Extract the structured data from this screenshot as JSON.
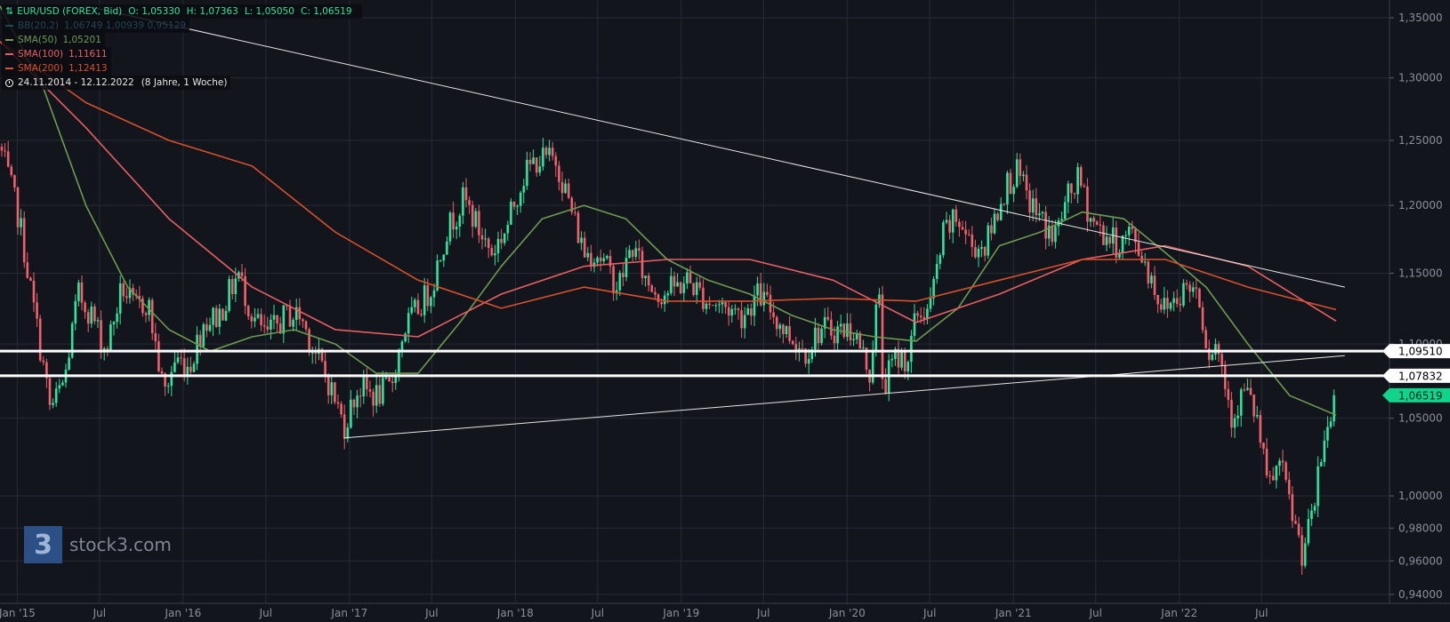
{
  "instrument": {
    "name": "EUR/USD (FOREX, Bid)",
    "open": "O: 1,05330",
    "high": "H: 1,07363",
    "low": "L: 1,05050",
    "close": "C: 1,06519",
    "range": "24.11.2014 - 12.12.2022",
    "range_note": "(8 Jahre, 1 Woche)"
  },
  "indicators": [
    {
      "label": "BB(20,2)",
      "values": "1,06749  1,00939  0,95129",
      "color": "#1f4654"
    },
    {
      "label": "SMA(50)",
      "values": "1,05201",
      "color": "#6e9a52"
    },
    {
      "label": "SMA(100)",
      "values": "1,11611",
      "color": "#e85f63"
    },
    {
      "label": "SMA(200)",
      "values": "1,12413",
      "color": "#d9502c"
    }
  ],
  "colors": {
    "up": "#2ee59d",
    "down": "#f0616d",
    "sma50": "#6e9a52",
    "sma100": "#e85f63",
    "sma200": "#d9502c",
    "last_price_tag": "#10d38c",
    "grid": "#272b33",
    "background": "#12151c"
  },
  "branding": {
    "logo_glyph": "3",
    "name": "stock3.com"
  },
  "chart_data": {
    "type": "candlestick",
    "title": "EUR/USD (FOREX, Bid)",
    "interval": "weekly",
    "xlabel": "",
    "ylabel": "",
    "ylim": [
      0.94,
      1.35
    ],
    "y_scale": "log",
    "y_ticks": [
      "0,94000",
      "0,96000",
      "0,98000",
      "1,00000",
      "1,05000",
      "1,10000",
      "1,15000",
      "1,20000",
      "1,25000",
      "1,30000",
      "1,35000"
    ],
    "x_ticks": [
      "Jan '15",
      "Jul",
      "Jan '16",
      "Jul",
      "Jan '17",
      "Jul",
      "Jan '18",
      "Jul",
      "Jan '19",
      "Jul",
      "Jan '20",
      "Jul",
      "Jan '21",
      "Jul",
      "Jan '22",
      "Jul"
    ],
    "grid": true,
    "last_price": "1,06519",
    "price_path": [
      [
        "2014-11-24",
        1.245
      ],
      [
        "2015-01-05",
        1.19
      ],
      [
        "2015-02-01",
        1.135
      ],
      [
        "2015-03-15",
        1.055
      ],
      [
        "2015-04-15",
        1.075
      ],
      [
        "2015-05-15",
        1.135
      ],
      [
        "2015-06-15",
        1.12
      ],
      [
        "2015-07-15",
        1.095
      ],
      [
        "2015-08-20",
        1.14
      ],
      [
        "2015-09-15",
        1.125
      ],
      [
        "2015-10-15",
        1.13
      ],
      [
        "2015-11-20",
        1.065
      ],
      [
        "2015-12-15",
        1.09
      ],
      [
        "2016-01-15",
        1.085
      ],
      [
        "2016-02-15",
        1.115
      ],
      [
        "2016-03-20",
        1.12
      ],
      [
        "2016-05-01",
        1.15
      ],
      [
        "2016-06-01",
        1.12
      ],
      [
        "2016-07-01",
        1.105
      ],
      [
        "2016-08-15",
        1.12
      ],
      [
        "2016-09-15",
        1.12
      ],
      [
        "2016-10-15",
        1.095
      ],
      [
        "2016-11-15",
        1.075
      ],
      [
        "2016-12-20",
        1.045
      ],
      [
        "2017-01-20",
        1.07
      ],
      [
        "2017-03-01",
        1.065
      ],
      [
        "2017-04-01",
        1.07
      ],
      [
        "2017-05-01",
        1.11
      ],
      [
        "2017-06-01",
        1.125
      ],
      [
        "2017-07-01",
        1.14
      ],
      [
        "2017-08-01",
        1.18
      ],
      [
        "2017-09-10",
        1.205
      ],
      [
        "2017-10-15",
        1.18
      ],
      [
        "2017-11-10",
        1.165
      ],
      [
        "2017-12-15",
        1.185
      ],
      [
        "2018-01-15",
        1.22
      ],
      [
        "2018-02-15",
        1.235
      ],
      [
        "2018-04-01",
        1.235
      ],
      [
        "2018-05-01",
        1.2
      ],
      [
        "2018-06-01",
        1.165
      ],
      [
        "2018-07-01",
        1.165
      ],
      [
        "2018-08-15",
        1.14
      ],
      [
        "2018-09-15",
        1.17
      ],
      [
        "2018-10-15",
        1.145
      ],
      [
        "2018-11-15",
        1.135
      ],
      [
        "2018-12-20",
        1.14
      ],
      [
        "2019-01-15",
        1.145
      ],
      [
        "2019-03-01",
        1.13
      ],
      [
        "2019-04-15",
        1.125
      ],
      [
        "2019-05-15",
        1.12
      ],
      [
        "2019-06-20",
        1.135
      ],
      [
        "2019-07-15",
        1.125
      ],
      [
        "2019-08-15",
        1.11
      ],
      [
        "2019-09-15",
        1.1
      ],
      [
        "2019-10-01",
        1.095
      ],
      [
        "2019-11-01",
        1.11
      ],
      [
        "2019-12-15",
        1.11
      ],
      [
        "2020-01-15",
        1.11
      ],
      [
        "2020-02-20",
        1.08
      ],
      [
        "2020-03-10",
        1.14
      ],
      [
        "2020-03-20",
        1.07
      ],
      [
        "2020-04-15",
        1.09
      ],
      [
        "2020-05-15",
        1.09
      ],
      [
        "2020-06-01",
        1.12
      ],
      [
        "2020-07-01",
        1.125
      ],
      [
        "2020-08-01",
        1.18
      ],
      [
        "2020-09-01",
        1.19
      ],
      [
        "2020-10-01",
        1.17
      ],
      [
        "2020-11-01",
        1.17
      ],
      [
        "2020-12-15",
        1.215
      ],
      [
        "2021-01-08",
        1.225
      ],
      [
        "2021-02-01",
        1.205
      ],
      [
        "2021-03-01",
        1.19
      ],
      [
        "2021-03-31",
        1.175
      ],
      [
        "2021-04-30",
        1.205
      ],
      [
        "2021-05-25",
        1.22
      ],
      [
        "2021-06-20",
        1.19
      ],
      [
        "2021-07-15",
        1.18
      ],
      [
        "2021-08-20",
        1.17
      ],
      [
        "2021-09-15",
        1.18
      ],
      [
        "2021-10-15",
        1.16
      ],
      [
        "2021-11-25",
        1.125
      ],
      [
        "2021-12-15",
        1.13
      ],
      [
        "2022-01-15",
        1.14
      ],
      [
        "2022-02-10",
        1.14
      ],
      [
        "2022-03-05",
        1.095
      ],
      [
        "2022-03-25",
        1.1
      ],
      [
        "2022-04-28",
        1.05
      ],
      [
        "2022-05-25",
        1.07
      ],
      [
        "2022-06-20",
        1.05
      ],
      [
        "2022-07-14",
        1.005
      ],
      [
        "2022-08-10",
        1.02
      ],
      [
        "2022-09-01",
        0.995
      ],
      [
        "2022-09-27",
        0.965
      ],
      [
        "2022-10-20",
        0.985
      ],
      [
        "2022-11-15",
        1.035
      ],
      [
        "2022-12-12",
        1.065
      ]
    ],
    "series": [
      {
        "name": "SMA(50)",
        "values": [
          [
            "2014-11-24",
            1.36
          ],
          [
            "2015-03-01",
            1.29
          ],
          [
            "2015-06-01",
            1.2
          ],
          [
            "2015-09-01",
            1.14
          ],
          [
            "2015-12-01",
            1.11
          ],
          [
            "2016-03-01",
            1.095
          ],
          [
            "2016-06-01",
            1.105
          ],
          [
            "2016-09-01",
            1.11
          ],
          [
            "2016-12-01",
            1.1
          ],
          [
            "2017-03-01",
            1.08
          ],
          [
            "2017-06-01",
            1.08
          ],
          [
            "2017-09-01",
            1.115
          ],
          [
            "2017-12-01",
            1.155
          ],
          [
            "2018-03-01",
            1.19
          ],
          [
            "2018-06-01",
            1.2
          ],
          [
            "2018-09-01",
            1.19
          ],
          [
            "2018-12-01",
            1.16
          ],
          [
            "2019-03-01",
            1.145
          ],
          [
            "2019-06-01",
            1.135
          ],
          [
            "2019-09-01",
            1.12
          ],
          [
            "2019-12-01",
            1.11
          ],
          [
            "2020-03-01",
            1.105
          ],
          [
            "2020-06-01",
            1.102
          ],
          [
            "2020-09-01",
            1.125
          ],
          [
            "2020-12-01",
            1.17
          ],
          [
            "2021-03-01",
            1.18
          ],
          [
            "2021-06-01",
            1.195
          ],
          [
            "2021-09-01",
            1.19
          ],
          [
            "2021-12-01",
            1.165
          ],
          [
            "2022-03-01",
            1.14
          ],
          [
            "2022-06-01",
            1.1
          ],
          [
            "2022-09-01",
            1.065
          ],
          [
            "2022-12-12",
            1.052
          ]
        ]
      },
      {
        "name": "SMA(100)",
        "values": [
          [
            "2014-11-24",
            1.33
          ],
          [
            "2015-06-01",
            1.26
          ],
          [
            "2015-12-01",
            1.19
          ],
          [
            "2016-06-01",
            1.14
          ],
          [
            "2016-12-01",
            1.11
          ],
          [
            "2017-06-01",
            1.105
          ],
          [
            "2017-12-01",
            1.135
          ],
          [
            "2018-06-01",
            1.155
          ],
          [
            "2018-12-01",
            1.16
          ],
          [
            "2019-06-01",
            1.16
          ],
          [
            "2019-12-01",
            1.145
          ],
          [
            "2020-06-01",
            1.115
          ],
          [
            "2020-12-01",
            1.135
          ],
          [
            "2021-06-01",
            1.16
          ],
          [
            "2021-12-01",
            1.17
          ],
          [
            "2022-06-01",
            1.155
          ],
          [
            "2022-12-12",
            1.116
          ]
        ]
      },
      {
        "name": "SMA(200)",
        "values": [
          [
            "2014-11-24",
            1.33
          ],
          [
            "2015-06-01",
            1.28
          ],
          [
            "2015-12-01",
            1.25
          ],
          [
            "2016-06-01",
            1.23
          ],
          [
            "2016-12-01",
            1.18
          ],
          [
            "2017-06-01",
            1.145
          ],
          [
            "2017-12-01",
            1.125
          ],
          [
            "2018-06-01",
            1.14
          ],
          [
            "2018-12-01",
            1.13
          ],
          [
            "2019-06-01",
            1.13
          ],
          [
            "2019-12-01",
            1.132
          ],
          [
            "2020-06-01",
            1.13
          ],
          [
            "2020-12-01",
            1.145
          ],
          [
            "2021-06-01",
            1.16
          ],
          [
            "2021-12-01",
            1.16
          ],
          [
            "2022-06-01",
            1.14
          ],
          [
            "2022-12-12",
            1.124
          ]
        ]
      }
    ],
    "horizontal_lines": [
      {
        "value": 1.0951,
        "label": "1,09510"
      },
      {
        "value": 1.07832,
        "label": "1,07832"
      }
    ],
    "trend_lines": [
      {
        "from": [
          "2015-06-01",
          1.36
        ],
        "to": [
          "2022-12-31",
          1.14
        ]
      },
      {
        "from": [
          "2016-12-20",
          1.037
        ],
        "to": [
          "2022-12-31",
          1.092
        ]
      }
    ]
  }
}
